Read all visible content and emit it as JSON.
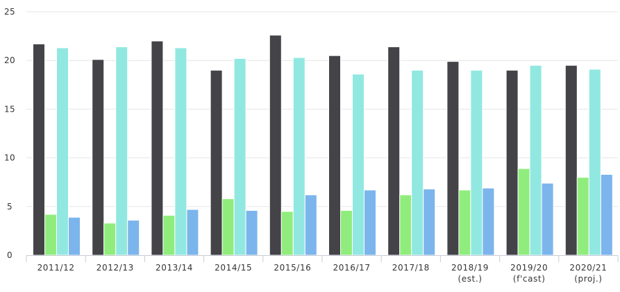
{
  "chart_data": {
    "type": "bar",
    "categories": [
      [
        "2011/12"
      ],
      [
        "2012/13"
      ],
      [
        "2013/14"
      ],
      [
        "2014/15"
      ],
      [
        "2015/16"
      ],
      [
        "2016/17"
      ],
      [
        "2017/18"
      ],
      [
        "2018/19",
        "(est.)"
      ],
      [
        "2019/20",
        "(f'cast)"
      ],
      [
        "2020/21",
        "(proj.)"
      ]
    ],
    "series": [
      {
        "color": "#434348",
        "values": [
          21.7,
          20.1,
          22.0,
          19.0,
          22.6,
          20.5,
          21.4,
          19.9,
          19.0,
          19.5
        ]
      },
      {
        "color": "#90ed7d",
        "values": [
          4.2,
          3.3,
          4.1,
          5.8,
          4.5,
          4.6,
          6.2,
          6.7,
          8.9,
          8.0
        ]
      },
      {
        "color": "#91e8e1",
        "values": [
          21.3,
          21.4,
          21.3,
          20.2,
          20.3,
          18.6,
          19.0,
          19.0,
          19.5,
          19.1
        ]
      },
      {
        "color": "#7cb5ec",
        "values": [
          3.9,
          3.6,
          4.7,
          4.6,
          6.2,
          6.7,
          6.8,
          6.9,
          7.4,
          8.3
        ]
      }
    ],
    "y_ticks": [
      "0",
      "5",
      "10",
      "15",
      "20",
      "25"
    ],
    "ylim": [
      0,
      25
    ],
    "grid": true,
    "legend": "none"
  }
}
